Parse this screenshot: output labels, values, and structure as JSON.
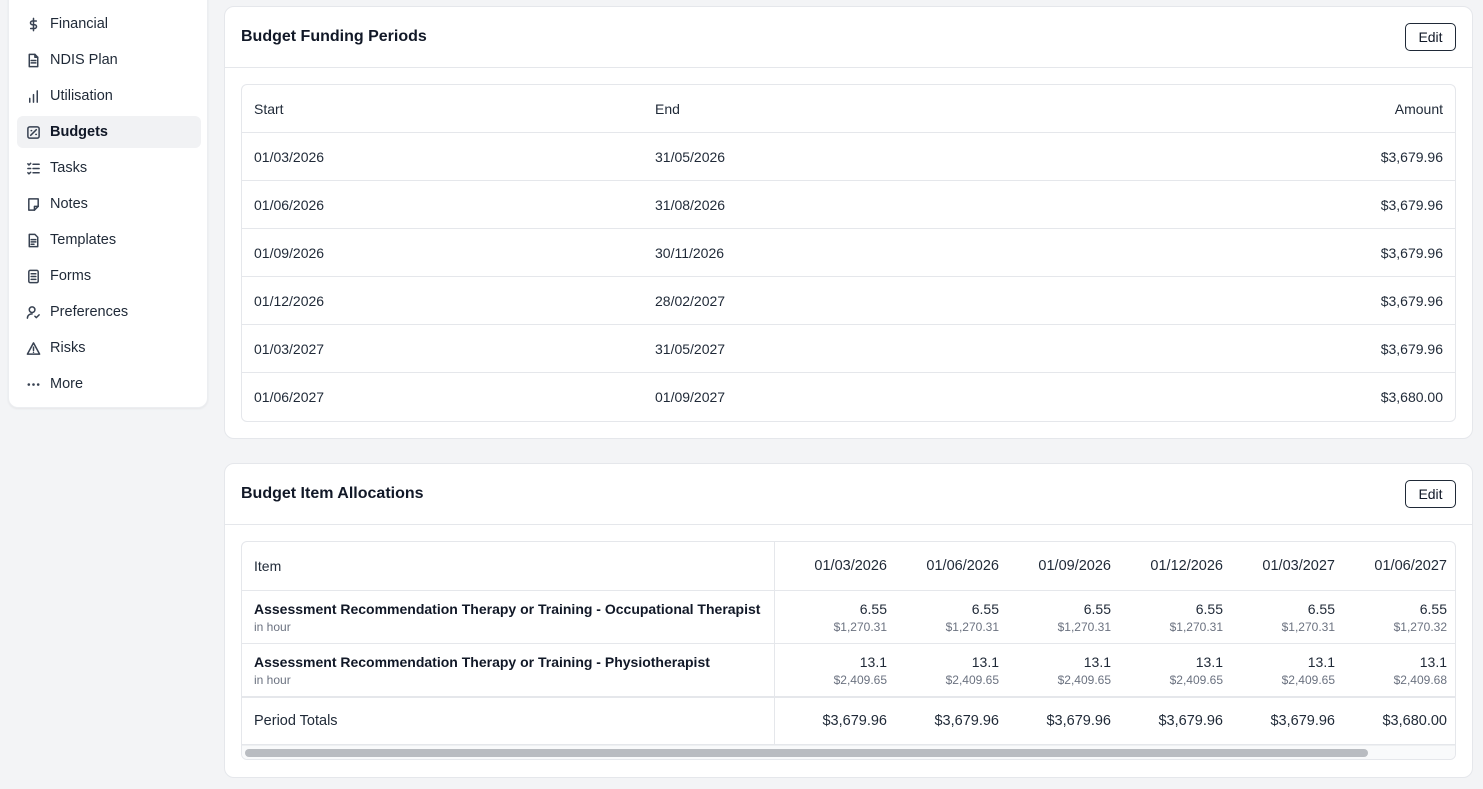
{
  "sidebar": {
    "items": [
      {
        "label": "Financial",
        "icon": "dollar-icon"
      },
      {
        "label": "NDIS Plan",
        "icon": "document-icon"
      },
      {
        "label": "Utilisation",
        "icon": "bar-chart-icon"
      },
      {
        "label": "Budgets",
        "icon": "budget-icon",
        "active": true
      },
      {
        "label": "Tasks",
        "icon": "tasks-icon"
      },
      {
        "label": "Notes",
        "icon": "note-icon"
      },
      {
        "label": "Templates",
        "icon": "template-icon"
      },
      {
        "label": "Forms",
        "icon": "form-icon"
      },
      {
        "label": "Preferences",
        "icon": "user-check-icon"
      },
      {
        "label": "Risks",
        "icon": "warning-icon"
      },
      {
        "label": "More",
        "icon": "more-icon"
      }
    ]
  },
  "funding_periods": {
    "title": "Budget Funding Periods",
    "edit_label": "Edit",
    "headers": {
      "start": "Start",
      "end": "End",
      "amount": "Amount"
    },
    "rows": [
      {
        "start": "01/03/2026",
        "end": "31/05/2026",
        "amount": "$3,679.96"
      },
      {
        "start": "01/06/2026",
        "end": "31/08/2026",
        "amount": "$3,679.96"
      },
      {
        "start": "01/09/2026",
        "end": "30/11/2026",
        "amount": "$3,679.96"
      },
      {
        "start": "01/12/2026",
        "end": "28/02/2027",
        "amount": "$3,679.96"
      },
      {
        "start": "01/03/2027",
        "end": "31/05/2027",
        "amount": "$3,679.96"
      },
      {
        "start": "01/06/2027",
        "end": "01/09/2027",
        "amount": "$3,680.00"
      }
    ]
  },
  "allocations": {
    "title": "Budget Item Allocations",
    "edit_label": "Edit",
    "item_header": "Item",
    "periods": [
      "01/03/2026",
      "01/06/2026",
      "01/09/2026",
      "01/12/2026",
      "01/03/2027",
      "01/06/2027"
    ],
    "items": [
      {
        "name": "Assessment Recommendation Therapy or Training - Occupational Therapist",
        "unit": "in hour",
        "cells": [
          {
            "qty": "6.55",
            "amount": "$1,270.31"
          },
          {
            "qty": "6.55",
            "amount": "$1,270.31"
          },
          {
            "qty": "6.55",
            "amount": "$1,270.31"
          },
          {
            "qty": "6.55",
            "amount": "$1,270.31"
          },
          {
            "qty": "6.55",
            "amount": "$1,270.31"
          },
          {
            "qty": "6.55",
            "amount": "$1,270.32"
          }
        ]
      },
      {
        "name": "Assessment Recommendation Therapy or Training - Physiotherapist",
        "unit": "in hour",
        "cells": [
          {
            "qty": "13.1",
            "amount": "$2,409.65"
          },
          {
            "qty": "13.1",
            "amount": "$2,409.65"
          },
          {
            "qty": "13.1",
            "amount": "$2,409.65"
          },
          {
            "qty": "13.1",
            "amount": "$2,409.65"
          },
          {
            "qty": "13.1",
            "amount": "$2,409.65"
          },
          {
            "qty": "13.1",
            "amount": "$2,409.68"
          }
        ]
      }
    ],
    "totals_label": "Period Totals",
    "totals": [
      "$3,679.96",
      "$3,679.96",
      "$3,679.96",
      "$3,679.96",
      "$3,679.96",
      "$3,680.00"
    ]
  }
}
